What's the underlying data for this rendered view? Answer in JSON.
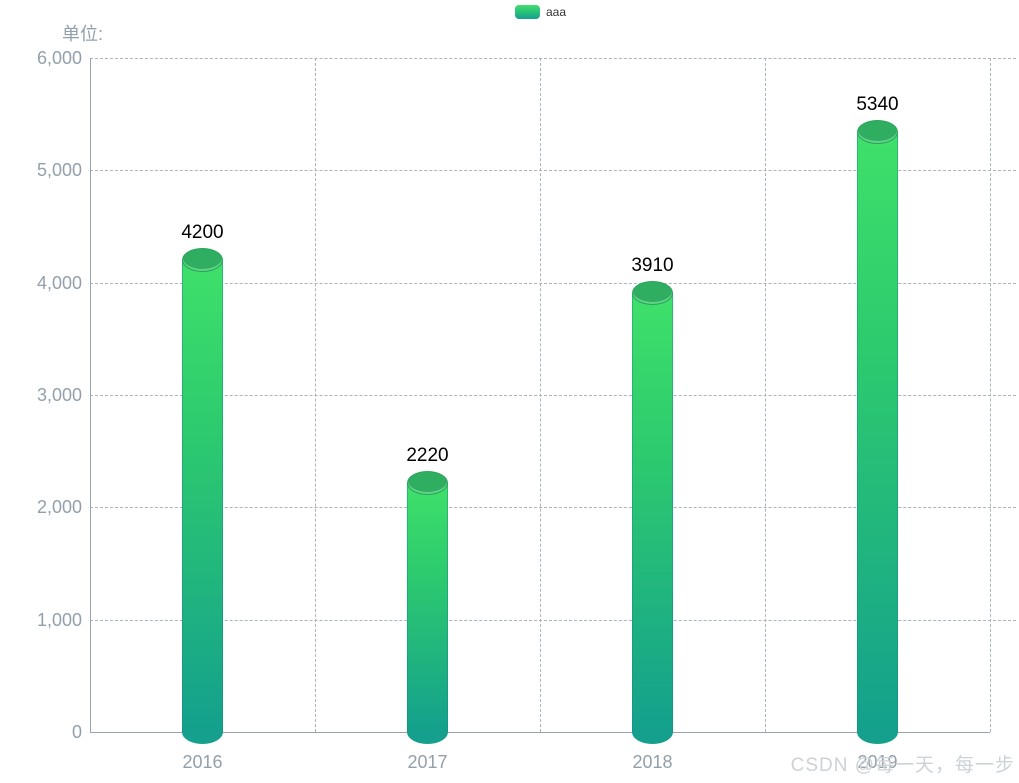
{
  "chart": {
    "unit_label": "单位:",
    "legend": [
      {
        "label": "aaa"
      }
    ],
    "watermark": "CSDN @每一天，每一步"
  },
  "chart_data": {
    "type": "bar",
    "bar_style": "cylinder-gradient",
    "title": "",
    "xlabel": "",
    "ylabel": "单位:",
    "categories": [
      "2016",
      "2017",
      "2018",
      "2019"
    ],
    "series": [
      {
        "name": "aaa",
        "values": [
          4200,
          2220,
          3910,
          5340
        ]
      }
    ],
    "value_labels": [
      "4200",
      "2220",
      "3910",
      "5340"
    ],
    "ylim": [
      0,
      6000
    ],
    "y_tick_interval": 1000,
    "y_tick_labels": [
      "0",
      "1,000",
      "2,000",
      "3,000",
      "4,000",
      "5,000",
      "6,000"
    ],
    "grid": true,
    "gridline_style": "dashed",
    "legend_position": "top-center"
  },
  "colors": {
    "background": "#FFFFFF",
    "bar_gradient_top": "#3FE06A",
    "bar_gradient_bottom": "#14A08D",
    "bar_top_ellipse": "#2FAE62",
    "axis_text": "#93A0AB",
    "axis_line": "#97A3AF",
    "gridline": "#AAB4BE",
    "value_label": "#000000",
    "legend_text": "#333333",
    "watermark": "#CDD2D6"
  }
}
